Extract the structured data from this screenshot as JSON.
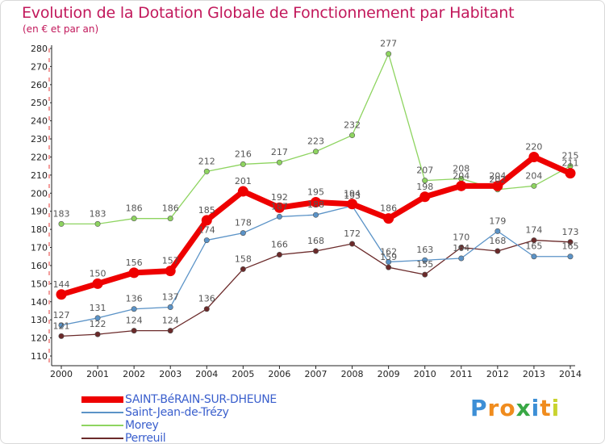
{
  "chart_data": {
    "type": "line",
    "title": "Evolution de la Dotation Globale de Fonctionnement par Habitant",
    "subtitle": "(en € et par an)",
    "xlabel": "",
    "ylabel": "",
    "x": [
      "2000",
      "2001",
      "2002",
      "2003",
      "2004",
      "2005",
      "2006",
      "2007",
      "2008",
      "2009",
      "2010",
      "2011",
      "2012",
      "2013",
      "2014"
    ],
    "ylim": [
      110,
      280
    ],
    "yticks": [
      110,
      120,
      130,
      140,
      150,
      160,
      170,
      180,
      190,
      200,
      210,
      220,
      230,
      240,
      250,
      260,
      270,
      280
    ],
    "grid": false,
    "legend_position": "bottom-left",
    "series": [
      {
        "name": "Perreuil",
        "color": "#6b2a2a",
        "values": [
          121,
          122,
          124,
          124,
          136,
          158,
          166,
          168,
          172,
          159,
          155,
          170,
          168,
          174,
          173
        ],
        "labels": [
          "121",
          "122",
          "124",
          "124",
          "136",
          "158",
          "166",
          "168",
          "172",
          "159",
          "155",
          "170",
          "168",
          "174",
          "173"
        ]
      },
      {
        "name": "Saint-Jean-de-Trézy",
        "color": "#5b93c7",
        "values": [
          127,
          131,
          136,
          137,
          174,
          178,
          187,
          188,
          193,
          162,
          163,
          164,
          179,
          165,
          165
        ],
        "labels": [
          "127",
          "131",
          "136",
          "137",
          "174",
          "178",
          "187",
          "188",
          "193",
          "162",
          "163",
          "164",
          "179",
          "165",
          "165"
        ]
      },
      {
        "name": "Morey",
        "color": "#8ed460",
        "values": [
          183,
          183,
          186,
          186,
          212,
          216,
          217,
          223,
          232,
          277,
          207,
          208,
          202,
          204,
          215
        ],
        "labels": [
          "183",
          "183",
          "186",
          "186",
          "212",
          "216",
          "217",
          "223",
          "232",
          "277",
          "207",
          "208",
          "202",
          "204",
          "215"
        ]
      },
      {
        "name": "SAINT-BéRAIN-SUR-DHEUNE",
        "color": "#ee0000",
        "values": [
          144,
          150,
          156,
          157,
          185,
          201,
          192,
          195,
          194,
          186,
          198,
          204,
          204,
          220,
          211
        ],
        "labels": [
          "144",
          "150",
          "156",
          "157",
          "185",
          "201",
          "192",
          "195",
          "194",
          "186",
          "198",
          "204",
          "204",
          "220",
          "211"
        ]
      }
    ],
    "legend_order": [
      "SAINT-BéRAIN-SUR-DHEUNE",
      "Saint-Jean-de-Trézy",
      "Morey",
      "Perreuil"
    ]
  },
  "logo": {
    "letters": [
      "P",
      "r",
      "o",
      "x",
      "i",
      "t",
      "i"
    ],
    "colors": [
      "#3d8fd6",
      "#f08c1e",
      "#f08c1e",
      "#39a845",
      "#3d8fd6",
      "#f08c1e",
      "#c9d32f"
    ]
  }
}
